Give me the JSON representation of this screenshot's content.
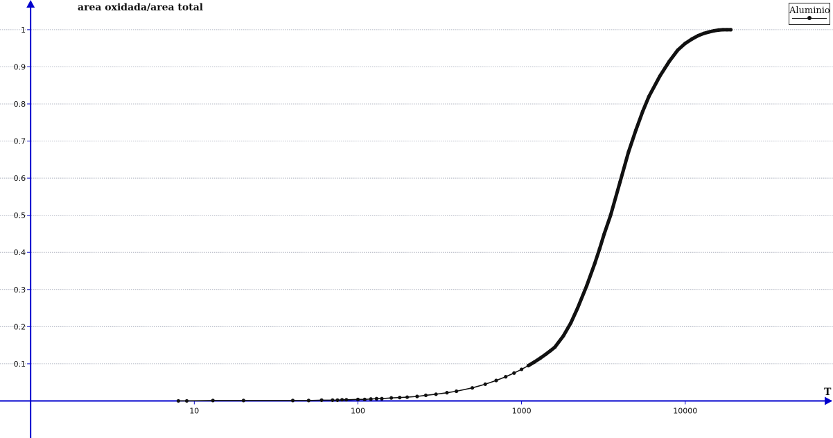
{
  "chart_data": {
    "type": "scatter",
    "xscale": "log",
    "xlabel": "T",
    "ylabel": "area oxidada/area total",
    "xlim": [
      0.65,
      80000
    ],
    "ylim": [
      -0.1,
      1.08
    ],
    "x_ticks": [
      10,
      100,
      1000,
      10000
    ],
    "x_tick_labels": [
      "10",
      "100",
      "1000",
      "10000"
    ],
    "y_ticks": [
      0.1,
      0.2,
      0.3,
      0.4,
      0.5,
      0.6,
      0.7,
      0.8,
      0.9,
      1
    ],
    "y_tick_labels": [
      "0.1",
      "0.2",
      "0.3",
      "0.4",
      "0.5",
      "0.6",
      "0.7",
      "0.8",
      "0.9",
      "1"
    ],
    "grid": true,
    "legend_position": "top-right",
    "axis_color": "#0000cc",
    "grid_color": "#9aa0b0",
    "series_color": "#111111",
    "series": [
      {
        "name": "Aluminio",
        "x": [
          8,
          9,
          13,
          20,
          40,
          50,
          60,
          70,
          75,
          80,
          85,
          100,
          110,
          120,
          130,
          140,
          160,
          180,
          200,
          230,
          260,
          300,
          350,
          400,
          500,
          600,
          700,
          800,
          900,
          1000,
          1100,
          1200,
          1300,
          1400,
          1500,
          1600,
          1800,
          2000,
          2200,
          2500,
          2800,
          3000,
          3200,
          3500,
          4000,
          4500,
          5000,
          5500,
          6000,
          7000,
          8000,
          9000,
          10000,
          11000,
          12000,
          13000,
          14000,
          15000,
          16000,
          17000,
          18000,
          19000
        ],
        "y": [
          0.0,
          0.0,
          0.001,
          0.001,
          0.001,
          0.001,
          0.002,
          0.002,
          0.002,
          0.003,
          0.003,
          0.004,
          0.004,
          0.005,
          0.006,
          0.006,
          0.008,
          0.009,
          0.01,
          0.012,
          0.015,
          0.018,
          0.022,
          0.026,
          0.035,
          0.045,
          0.055,
          0.065,
          0.075,
          0.085,
          0.095,
          0.105,
          0.115,
          0.125,
          0.135,
          0.145,
          0.175,
          0.21,
          0.25,
          0.31,
          0.37,
          0.41,
          0.45,
          0.5,
          0.59,
          0.67,
          0.73,
          0.78,
          0.82,
          0.875,
          0.915,
          0.945,
          0.963,
          0.975,
          0.984,
          0.99,
          0.994,
          0.997,
          0.999,
          1.0,
          1.0,
          1.0
        ]
      }
    ]
  }
}
